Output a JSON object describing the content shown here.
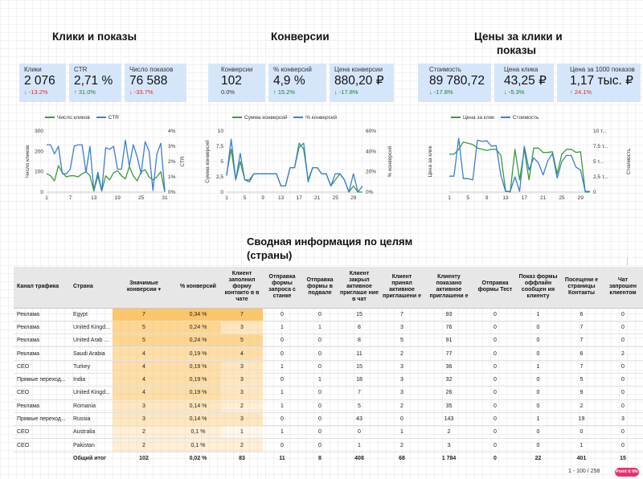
{
  "sections": {
    "clicks": "Клики и показы",
    "conversions": "Конверсии",
    "prices_line1": "Цены за клики и",
    "prices_line2": "показы",
    "summary_line1": "Сводная информация по целям",
    "summary_line2": "(страны)"
  },
  "kpis": [
    {
      "label": "Клики",
      "value": "2 076",
      "change": "↓ -13.2%",
      "trend": "neg"
    },
    {
      "label": "CTR",
      "value": "2,71 %",
      "change": "↑ 31.0%",
      "trend": "pos"
    },
    {
      "label": "Число показов",
      "value": "76 588",
      "change": "↓ -33.7%",
      "trend": "neg"
    },
    {
      "label": "Конверсии",
      "value": "102",
      "change": "0.0%",
      "trend": "neu"
    },
    {
      "label": "% конверсий",
      "value": "4,9 %",
      "change": "↑ 15.2%",
      "trend": "pos"
    },
    {
      "label": "Цена конверсии",
      "value": "880,20 ₽",
      "change": "↓ -17.8%",
      "trend": "pos"
    },
    {
      "label": "Стоимость",
      "value": "89 780,72",
      "change": "↓ -17.8%",
      "trend": "pos"
    },
    {
      "label": "Цена клика",
      "value": "43,25 ₽",
      "change": "↓ -5.3%",
      "trend": "pos"
    },
    {
      "label": "Цена за 1000 показов",
      "value": "1,17 тыс. ₽",
      "change": "↑ 24.1%",
      "trend": "neg"
    }
  ],
  "colors": {
    "green": "#3a9b3a",
    "blue": "#3a7fd0"
  },
  "chart_data": [
    {
      "type": "line",
      "title": "",
      "x": [
        1,
        2,
        3,
        4,
        5,
        6,
        7,
        8,
        9,
        10,
        11,
        12,
        13,
        14,
        15,
        16,
        17,
        18,
        19,
        20,
        21,
        22,
        23,
        24,
        25,
        26,
        27,
        28,
        29,
        30,
        31
      ],
      "xticks": [
        "1",
        "7",
        "13",
        "19",
        "25",
        "31"
      ],
      "ylabel_left": "Число кликов",
      "ylabel_right": "CTR",
      "ylim_left": [
        0,
        300
      ],
      "ylim_right": [
        0,
        4
      ],
      "yticks_left": [
        "300",
        "200",
        "100",
        "0"
      ],
      "yticks_right": [
        "4%",
        "3%",
        "2%",
        "1%",
        "0%"
      ],
      "series": [
        {
          "name": "Число кликов",
          "axis": "left",
          "color": "#3a9b3a",
          "values": [
            90,
            80,
            55,
            130,
            95,
            75,
            80,
            80,
            75,
            90,
            100,
            80,
            5,
            80,
            5,
            80,
            60,
            95,
            105,
            80,
            65,
            125,
            80,
            55,
            100,
            110,
            75,
            60,
            75,
            100,
            0
          ]
        },
        {
          "name": "CTR",
          "axis": "right",
          "color": "#3a7fd0",
          "values": [
            3.1,
            3.1,
            2.5,
            3.0,
            1.2,
            1.2,
            1.5,
            3.0,
            3.1,
            3.1,
            1.3,
            3.0,
            0.1,
            1.3,
            0.1,
            2.9,
            2.8,
            3.0,
            1.5,
            1.5,
            3.4,
            1.7,
            3.1,
            2.3,
            1.2,
            3.3,
            2.7,
            0.1,
            2.5,
            3.2,
            0.1
          ]
        }
      ]
    },
    {
      "type": "line",
      "title": "",
      "x": [
        1,
        2,
        3,
        4,
        5,
        6,
        7,
        8,
        9,
        10,
        11,
        12,
        13,
        14,
        15,
        16,
        17,
        18,
        19,
        20,
        21,
        22,
        23,
        24,
        25,
        26,
        27,
        28,
        29,
        30,
        31
      ],
      "xticks": [
        "1",
        "5",
        "9",
        "13",
        "17",
        "21",
        "25",
        "29"
      ],
      "ylabel_left": "Сумма конверсий",
      "ylabel_right": "% конверсий",
      "ylim_left": [
        0,
        10
      ],
      "ylim_right": [
        0,
        60
      ],
      "yticks_left": [
        "10",
        "7,5",
        "5",
        "2,5",
        "0"
      ],
      "yticks_right": [
        "60%",
        "40%",
        "20%",
        "0%"
      ],
      "series": [
        {
          "name": "Сумма конверсий",
          "axis": "left",
          "color": "#3a9b3a",
          "values": [
            3,
            7,
            2,
            5,
            2,
            2,
            3,
            3,
            3,
            3,
            3,
            3,
            1,
            1,
            4,
            4,
            8,
            7,
            2,
            4,
            4,
            3,
            3,
            1,
            2,
            3,
            2,
            0,
            1,
            0,
            0
          ]
        },
        {
          "name": "% конверсий",
          "axis": "right",
          "color": "#3a7fd0",
          "values": [
            16,
            52,
            12,
            38,
            12,
            10,
            18,
            18,
            18,
            18,
            18,
            18,
            6,
            6,
            24,
            24,
            44,
            48,
            10,
            24,
            24,
            18,
            18,
            6,
            18,
            18,
            12,
            0,
            18,
            0,
            6
          ]
        }
      ]
    },
    {
      "type": "line",
      "title": "",
      "x": [
        1,
        2,
        3,
        4,
        5,
        6,
        7,
        8,
        9,
        10,
        11,
        12,
        13,
        14,
        15,
        16,
        17,
        18,
        19,
        20,
        21,
        22,
        23,
        24,
        25,
        26,
        27,
        28,
        29,
        30,
        31
      ],
      "xticks": [
        "1",
        "5",
        "9",
        "13",
        "17",
        "21",
        "25",
        "29"
      ],
      "ylabel_left": "Цена за клик",
      "ylabel_right": "Стоимость",
      "ylim_left": [
        0,
        100
      ],
      "ylim_right": [
        0,
        10
      ],
      "yticks_left": [],
      "yticks_right": [
        "10 т...",
        "7,5 т...",
        "5 т...",
        "2,5 т...",
        "0"
      ],
      "series": [
        {
          "name": "Цена за клик",
          "axis": "left",
          "color": "#3a9b3a",
          "values": [
            62,
            62,
            70,
            82,
            80,
            78,
            72,
            70,
            68,
            70,
            70,
            60,
            2,
            0,
            70,
            20,
            70,
            20,
            72,
            72,
            65,
            65,
            66,
            30,
            62,
            70,
            70,
            65,
            66,
            0,
            0
          ]
        },
        {
          "name": "Стоимость",
          "axis": "right",
          "color": "#3a7fd0",
          "values": [
            2.6,
            2.6,
            8.8,
            2.2,
            2.2,
            2.0,
            8.5,
            8.3,
            8.4,
            7.5,
            7.6,
            2.7,
            0.1,
            0.1,
            2.5,
            0.1,
            7.5,
            3.6,
            5.6,
            4.8,
            2.8,
            5.1,
            6.3,
            2.3,
            5.0,
            6.0,
            6.0,
            4.1,
            3.6,
            0.1,
            0.1
          ]
        }
      ]
    }
  ],
  "table": {
    "headers": [
      "Канал трафика",
      "Страна",
      "Значимые конверсии ▾",
      "% конверсий",
      "Клиент заполнил форму контакто в в чате",
      "Отправка формы запроса с станке",
      "Отправка формы в подвале",
      "Клиент закрыл активное приглаше ние в чат",
      "Клиент принял активное приглашени е",
      "Клиенту показано активное приглашени е",
      "Отправка формы Тест",
      "Показ формы оффлайн сообщен ия клиенту",
      "Посещени е страницы Контакты",
      "Чат запрошен клиентом"
    ],
    "rows": [
      [
        "Реклама",
        "Egypt",
        "7",
        "0,34 %",
        "7",
        "0",
        "0",
        "15",
        "7",
        "93",
        "0",
        "1",
        "6",
        "0"
      ],
      [
        "Реклама",
        "United Kingd...",
        "5",
        "0,24 %",
        "3",
        "1",
        "1",
        "8",
        "3",
        "76",
        "0",
        "0",
        "7",
        "0"
      ],
      [
        "Реклама",
        "United Arab ...",
        "5",
        "0,24 %",
        "5",
        "0",
        "0",
        "8",
        "5",
        "91",
        "0",
        "0",
        "7",
        "0"
      ],
      [
        "Реклама",
        "Saudi Arabia",
        "4",
        "0,19 %",
        "4",
        "0",
        "0",
        "11",
        "2",
        "77",
        "0",
        "0",
        "6",
        "2"
      ],
      [
        "CEO",
        "Turkey",
        "4",
        "0,19 %",
        "3",
        "1",
        "0",
        "15",
        "3",
        "36",
        "0",
        "1",
        "7",
        "0"
      ],
      [
        "Прямые переход...",
        "India",
        "4",
        "0,19 %",
        "3",
        "0",
        "1",
        "18",
        "3",
        "32",
        "0",
        "0",
        "5",
        "0"
      ],
      [
        "CEO",
        "United Kingd...",
        "4",
        "0,19 %",
        "3",
        "1",
        "0",
        "7",
        "3",
        "26",
        "0",
        "0",
        "9",
        "0"
      ],
      [
        "Реклама",
        "Romania",
        "3",
        "0,14 %",
        "2",
        "1",
        "0",
        "5",
        "2",
        "35",
        "0",
        "0",
        "2",
        "0"
      ],
      [
        "Прямые переход...",
        "Russia",
        "3",
        "0,14 %",
        "3",
        "0",
        "0",
        "43",
        "0",
        "143",
        "0",
        "1",
        "19",
        "3"
      ],
      [
        "CEO",
        "Australia",
        "2",
        "0,1 %",
        "1",
        "1",
        "0",
        "0",
        "1",
        "2",
        "0",
        "0",
        "0",
        "0"
      ],
      [
        "CEO",
        "Pakistan",
        "2",
        "0,1 %",
        "2",
        "0",
        "0",
        "1",
        "2",
        "3",
        "0",
        "0",
        "1",
        "0"
      ]
    ],
    "total": [
      "Общий итог",
      "102",
      "0,02 %",
      "83",
      "11",
      "8",
      "408",
      "68",
      "1 784",
      "0",
      "22",
      "401",
      "15"
    ],
    "pager": "1 - 100 / 258"
  },
  "logo_text": "Point it life",
  "more_icon": "⋮"
}
